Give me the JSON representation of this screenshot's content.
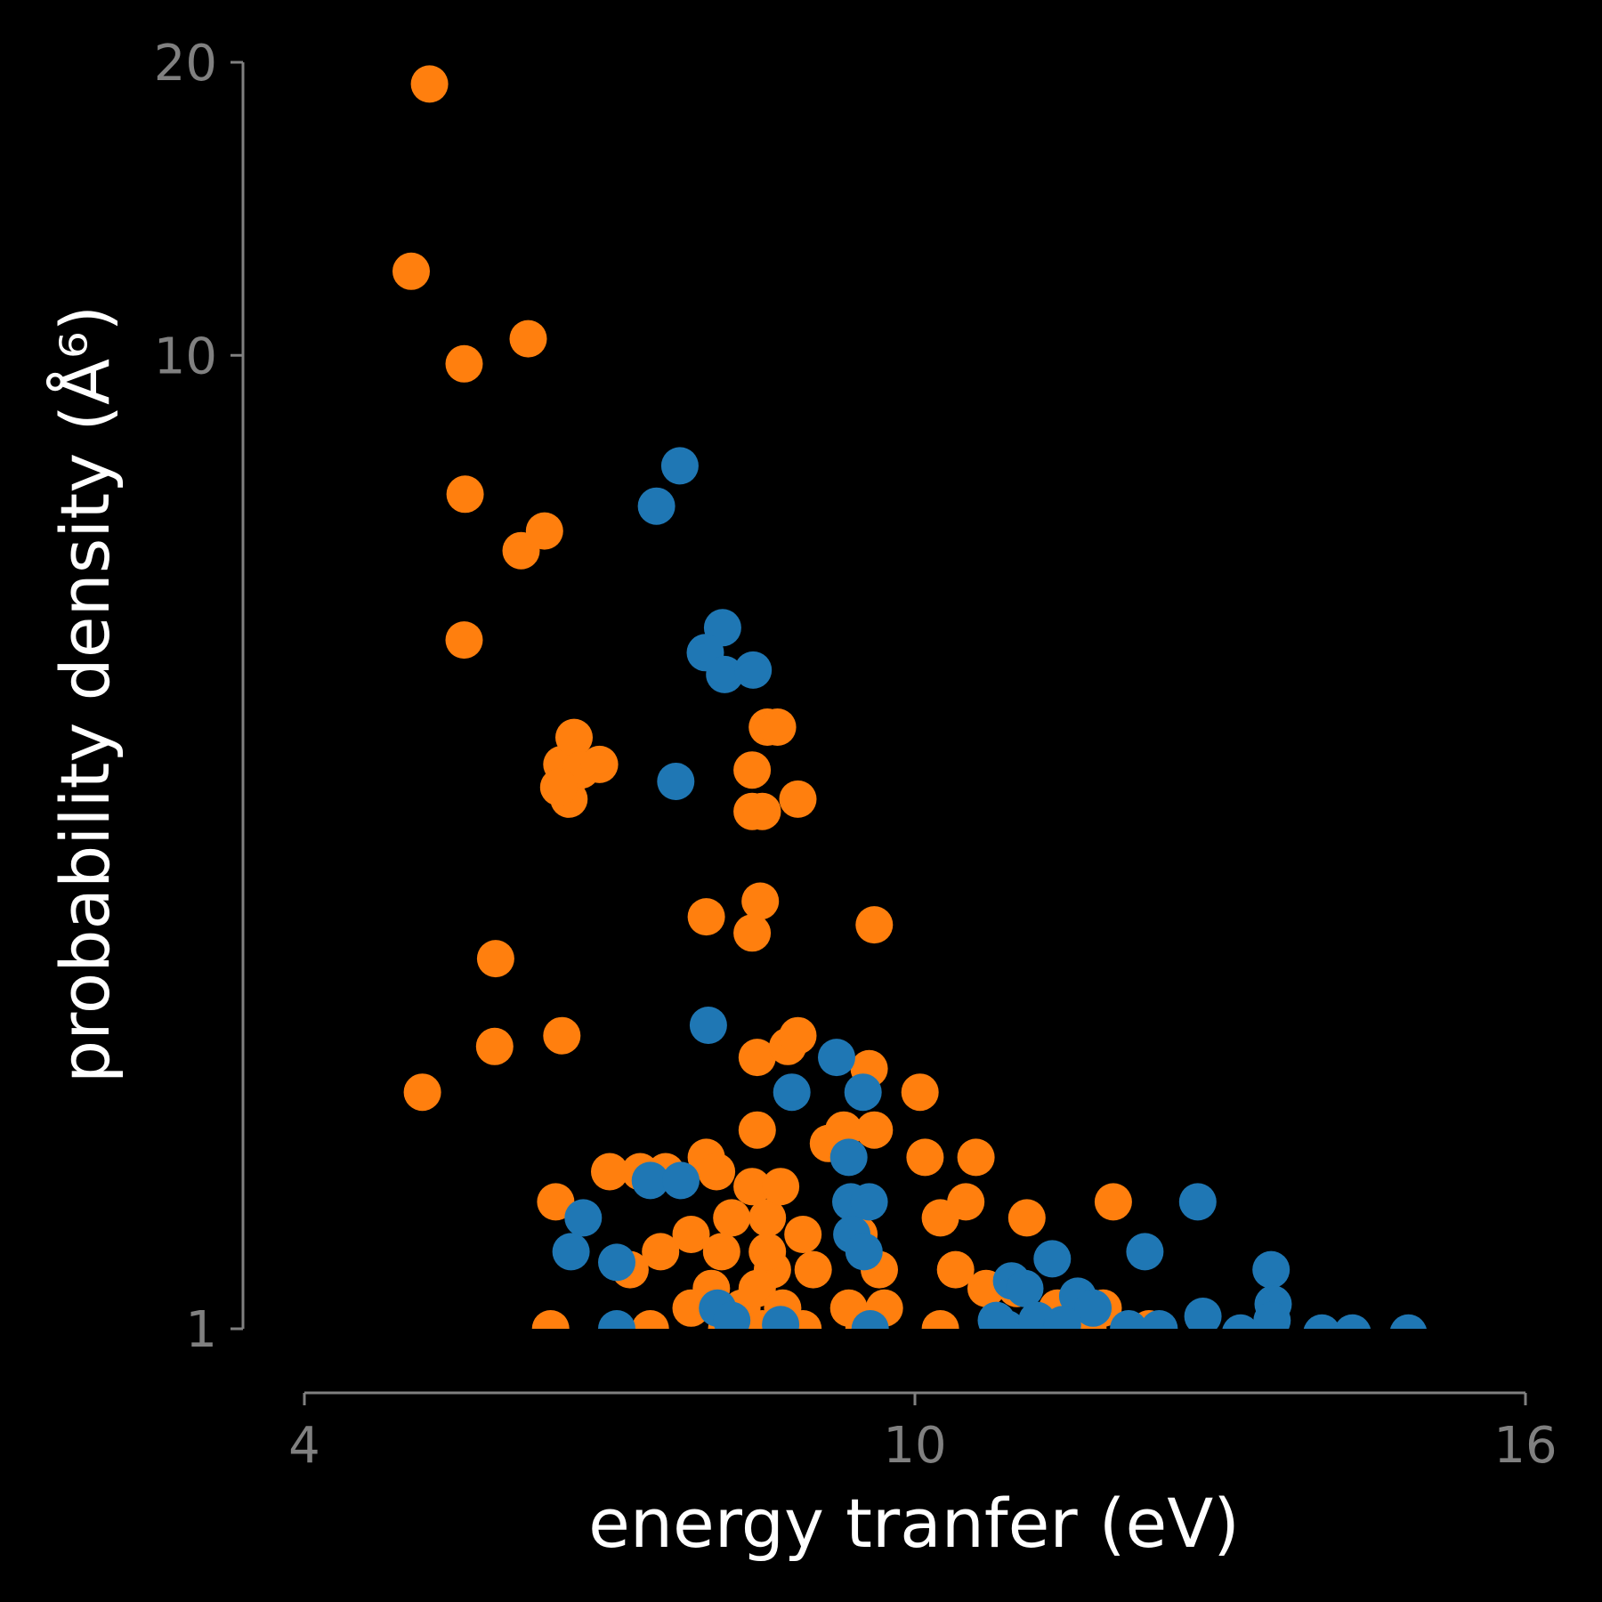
{
  "chart_data": {
    "type": "scatter",
    "title": "",
    "xlabel": "energy tranfer (eV)",
    "ylabel": "probability density (Å⁶)",
    "xlim": [
      4,
      16
    ],
    "ylim": [
      1,
      20
    ],
    "yscale": "log",
    "xticks": [
      4,
      10,
      16
    ],
    "yticks": [
      1,
      10,
      20
    ],
    "xtick_labels": [
      "4",
      "10",
      "16"
    ],
    "ytick_labels": [
      "1",
      "10",
      "20"
    ],
    "grid": false,
    "legend": "none",
    "background": "#000000",
    "series": [
      {
        "color": "#ff7f0e",
        "points": [
          [
            5.23,
            19.0
          ],
          [
            5.05,
            12.2
          ],
          [
            5.16,
            1.75
          ],
          [
            5.57,
            9.8
          ],
          [
            5.58,
            7.2
          ],
          [
            5.57,
            5.1
          ],
          [
            6.2,
            10.4
          ],
          [
            6.13,
            6.3
          ],
          [
            6.36,
            6.6
          ],
          [
            5.88,
            2.4
          ],
          [
            5.87,
            1.95
          ],
          [
            6.53,
            3.8
          ],
          [
            6.6,
            3.5
          ],
          [
            6.65,
            4.05
          ],
          [
            6.72,
            3.75
          ],
          [
            6.9,
            3.8
          ],
          [
            6.5,
            3.6
          ],
          [
            6.53,
            2.0
          ],
          [
            6.47,
            1.35
          ],
          [
            7.0,
            1.45
          ],
          [
            7.3,
            1.45
          ],
          [
            7.55,
            1.45
          ],
          [
            7.2,
            1.15
          ],
          [
            7.5,
            1.2
          ],
          [
            7.95,
            2.65
          ],
          [
            8.4,
            1.4
          ],
          [
            8.2,
            1.3
          ],
          [
            8.1,
            1.2
          ],
          [
            8.55,
            1.3
          ],
          [
            8.0,
            1.1
          ],
          [
            8.3,
            1.05
          ],
          [
            8.6,
            1.15
          ],
          [
            8.5,
            1.0
          ],
          [
            7.8,
            1.05
          ],
          [
            8.15,
            1.0
          ],
          [
            8.68,
            1.4
          ],
          [
            8.55,
            1.2
          ],
          [
            8.45,
            1.1
          ],
          [
            8.4,
            3.75
          ],
          [
            8.4,
            3.4
          ],
          [
            8.5,
            3.4
          ],
          [
            8.48,
            2.75
          ],
          [
            8.4,
            2.55
          ],
          [
            8.45,
            1.9
          ],
          [
            8.45,
            1.6
          ],
          [
            8.55,
            4.15
          ],
          [
            8.65,
            4.15
          ],
          [
            8.85,
            3.5
          ],
          [
            8.75,
            1.95
          ],
          [
            8.85,
            2.0
          ],
          [
            8.9,
            1.25
          ],
          [
            9.0,
            1.15
          ],
          [
            8.7,
            1.05
          ],
          [
            8.9,
            1.0
          ],
          [
            9.15,
            1.55
          ],
          [
            9.3,
            1.6
          ],
          [
            9.55,
            1.85
          ],
          [
            9.6,
            1.6
          ],
          [
            9.6,
            2.6
          ],
          [
            9.45,
            1.25
          ],
          [
            9.65,
            1.15
          ],
          [
            9.35,
            1.05
          ],
          [
            9.7,
            1.05
          ],
          [
            9.5,
            1.0
          ],
          [
            10.05,
            1.75
          ],
          [
            10.1,
            1.5
          ],
          [
            10.25,
            1.3
          ],
          [
            10.5,
            1.35
          ],
          [
            10.6,
            1.5
          ],
          [
            10.4,
            1.15
          ],
          [
            10.7,
            1.1
          ],
          [
            10.25,
            1.0
          ],
          [
            11.1,
            1.3
          ],
          [
            11.0,
            1.1
          ],
          [
            11.4,
            1.05
          ],
          [
            11.6,
            1.0
          ],
          [
            11.95,
            1.35
          ],
          [
            11.85,
            1.05
          ],
          [
            11.7,
            1.0
          ],
          [
            12.3,
            1.0
          ],
          [
            7.95,
            1.5
          ],
          [
            8.05,
            1.45
          ],
          [
            7.8,
            1.25
          ],
          [
            7.4,
            1.0
          ],
          [
            6.42,
            1.0
          ]
        ]
      },
      {
        "color": "#1f77b4",
        "points": [
          [
            7.46,
            7.0
          ],
          [
            7.69,
            7.7
          ],
          [
            7.65,
            3.65
          ],
          [
            8.11,
            5.25
          ],
          [
            7.94,
            4.95
          ],
          [
            8.13,
            4.7
          ],
          [
            8.41,
            4.75
          ],
          [
            7.97,
            2.05
          ],
          [
            8.79,
            1.75
          ],
          [
            9.23,
            1.9
          ],
          [
            9.49,
            1.75
          ],
          [
            9.35,
            1.5
          ],
          [
            9.37,
            1.35
          ],
          [
            9.55,
            1.35
          ],
          [
            9.38,
            1.25
          ],
          [
            9.5,
            1.2
          ],
          [
            7.4,
            1.42
          ],
          [
            7.7,
            1.42
          ],
          [
            6.74,
            1.3
          ],
          [
            6.62,
            1.2
          ],
          [
            7.07,
            1.17
          ],
          [
            8.06,
            1.05
          ],
          [
            8.2,
            1.02
          ],
          [
            8.68,
            1.01
          ],
          [
            7.07,
            1.0
          ],
          [
            9.56,
            1.0
          ],
          [
            10.95,
            1.12
          ],
          [
            11.08,
            1.1
          ],
          [
            11.35,
            1.18
          ],
          [
            11.6,
            1.08
          ],
          [
            12.26,
            1.2
          ],
          [
            12.78,
            1.35
          ],
          [
            11.75,
            1.05
          ],
          [
            12.83,
            1.03
          ],
          [
            13.5,
            1.15
          ],
          [
            13.52,
            1.06
          ],
          [
            13.51,
            1.02
          ],
          [
            10.9,
            1.0
          ],
          [
            11.2,
            1.02
          ],
          [
            11.45,
            1.01
          ],
          [
            13.2,
            0.99
          ],
          [
            14.0,
            0.99
          ],
          [
            14.3,
            0.99
          ],
          [
            14.85,
            0.99
          ],
          [
            12.1,
            1.0
          ],
          [
            12.4,
            1.0
          ],
          [
            10.8,
            1.02
          ]
        ]
      }
    ]
  }
}
